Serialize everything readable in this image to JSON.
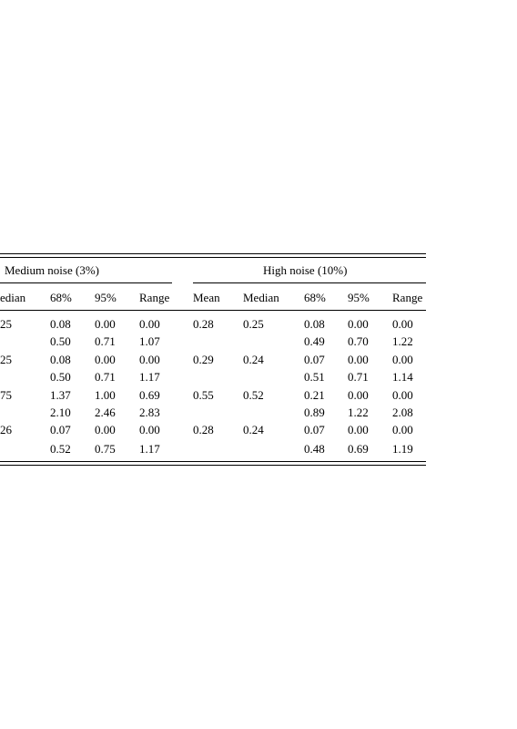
{
  "table": {
    "group_headers": [
      "Medium noise (3%)",
      "High noise (10%)"
    ],
    "col_headers": [
      "edian",
      "68%",
      "95%",
      "Range",
      "Mean",
      "Median",
      "68%",
      "95%",
      "Range"
    ],
    "rows": [
      {
        "c": [
          "25",
          "0.08",
          "0.00",
          "0.00",
          "0.28",
          "0.25",
          "0.08",
          "0.00",
          "0.00"
        ]
      },
      {
        "c": [
          "",
          "0.50",
          "0.71",
          "1.07",
          "",
          "",
          "0.49",
          "0.70",
          "1.22"
        ]
      },
      {
        "c": [
          "25",
          "0.08",
          "0.00",
          "0.00",
          "0.29",
          "0.24",
          "0.07",
          "0.00",
          "0.00"
        ]
      },
      {
        "c": [
          "",
          "0.50",
          "0.71",
          "1.17",
          "",
          "",
          "0.51",
          "0.71",
          "1.14"
        ]
      },
      {
        "c": [
          "75",
          "1.37",
          "1.00",
          "0.69",
          "0.55",
          "0.52",
          "0.21",
          "0.00",
          "0.00"
        ]
      },
      {
        "c": [
          "",
          "2.10",
          "2.46",
          "2.83",
          "",
          "",
          "0.89",
          "1.22",
          "2.08"
        ]
      },
      {
        "c": [
          "26",
          "0.07",
          "0.00",
          "0.00",
          "0.28",
          "0.24",
          "0.07",
          "0.00",
          "0.00"
        ]
      },
      {
        "c": [
          "",
          "0.52",
          "0.75",
          "1.17",
          "",
          "",
          "0.48",
          "0.69",
          "1.19"
        ]
      }
    ]
  }
}
